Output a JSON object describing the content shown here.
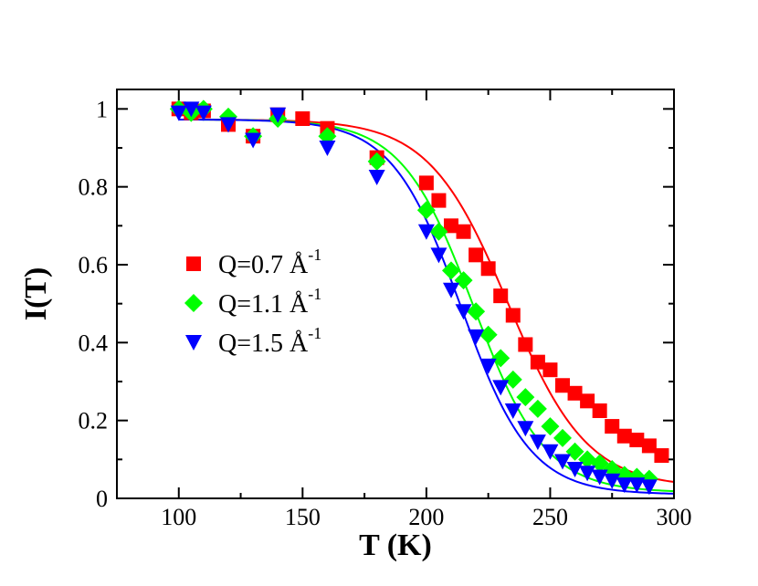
{
  "chart_data": {
    "type": "scatter",
    "xlabel": "T (K)",
    "ylabel": "I(T)",
    "xlim": [
      75,
      300
    ],
    "ylim": [
      0,
      1.05
    ],
    "xticks": [
      100,
      150,
      200,
      250,
      300
    ],
    "yticks": [
      0,
      0.2,
      0.4,
      0.6,
      0.8,
      1
    ],
    "grid": false,
    "legend_position": "center-left",
    "series": [
      {
        "name": "Q=0.7 Å",
        "superscript": "-1",
        "color": "#ff0000",
        "marker": "square",
        "points": [
          [
            100,
            1.0
          ],
          [
            105,
            0.99
          ],
          [
            110,
            0.995
          ],
          [
            120,
            0.96
          ],
          [
            130,
            0.93
          ],
          [
            140,
            0.985
          ],
          [
            150,
            0.975
          ],
          [
            160,
            0.95
          ],
          [
            180,
            0.875
          ],
          [
            200,
            0.81
          ],
          [
            205,
            0.765
          ],
          [
            210,
            0.7
          ],
          [
            215,
            0.685
          ],
          [
            220,
            0.625
          ],
          [
            225,
            0.59
          ],
          [
            230,
            0.52
          ],
          [
            235,
            0.47
          ],
          [
            240,
            0.395
          ],
          [
            245,
            0.35
          ],
          [
            250,
            0.33
          ],
          [
            255,
            0.29
          ],
          [
            260,
            0.27
          ],
          [
            265,
            0.25
          ],
          [
            270,
            0.225
          ],
          [
            275,
            0.185
          ],
          [
            280,
            0.16
          ],
          [
            285,
            0.15
          ],
          [
            290,
            0.135
          ],
          [
            295,
            0.11
          ]
        ],
        "fit": {
          "plateau": 0.973,
          "base": 0.028,
          "t0": 233,
          "width": 16
        }
      },
      {
        "name": "Q=1.1 Å",
        "superscript": "-1",
        "color": "#00ff00",
        "marker": "diamond",
        "points": [
          [
            100,
            1.0
          ],
          [
            105,
            0.99
          ],
          [
            110,
            1.0
          ],
          [
            120,
            0.98
          ],
          [
            130,
            0.93
          ],
          [
            140,
            0.975
          ],
          [
            160,
            0.93
          ],
          [
            180,
            0.865
          ],
          [
            200,
            0.74
          ],
          [
            205,
            0.685
          ],
          [
            210,
            0.585
          ],
          [
            215,
            0.56
          ],
          [
            220,
            0.48
          ],
          [
            225,
            0.42
          ],
          [
            230,
            0.36
          ],
          [
            235,
            0.305
          ],
          [
            240,
            0.26
          ],
          [
            245,
            0.23
          ],
          [
            250,
            0.185
          ],
          [
            255,
            0.155
          ],
          [
            260,
            0.12
          ],
          [
            265,
            0.1
          ],
          [
            270,
            0.09
          ],
          [
            275,
            0.075
          ],
          [
            280,
            0.06
          ],
          [
            285,
            0.055
          ],
          [
            290,
            0.05
          ]
        ],
        "fit": {
          "plateau": 0.973,
          "base": 0.015,
          "t0": 219,
          "width": 14.5
        }
      },
      {
        "name": "Q=1.5 Å",
        "superscript": "-1",
        "color": "#0000ff",
        "marker": "triangle-down",
        "points": [
          [
            100,
            0.99
          ],
          [
            105,
            1.0
          ],
          [
            110,
            0.99
          ],
          [
            120,
            0.96
          ],
          [
            130,
            0.92
          ],
          [
            140,
            0.985
          ],
          [
            160,
            0.9
          ],
          [
            180,
            0.825
          ],
          [
            200,
            0.685
          ],
          [
            205,
            0.625
          ],
          [
            210,
            0.535
          ],
          [
            215,
            0.48
          ],
          [
            220,
            0.415
          ],
          [
            225,
            0.34
          ],
          [
            230,
            0.285
          ],
          [
            235,
            0.225
          ],
          [
            240,
            0.18
          ],
          [
            245,
            0.145
          ],
          [
            250,
            0.12
          ],
          [
            255,
            0.095
          ],
          [
            260,
            0.075
          ],
          [
            265,
            0.065
          ],
          [
            270,
            0.055
          ],
          [
            275,
            0.045
          ],
          [
            280,
            0.035
          ],
          [
            285,
            0.035
          ],
          [
            290,
            0.03
          ]
        ],
        "fit": {
          "plateau": 0.973,
          "base": 0.01,
          "t0": 214,
          "width": 14
        }
      }
    ]
  }
}
